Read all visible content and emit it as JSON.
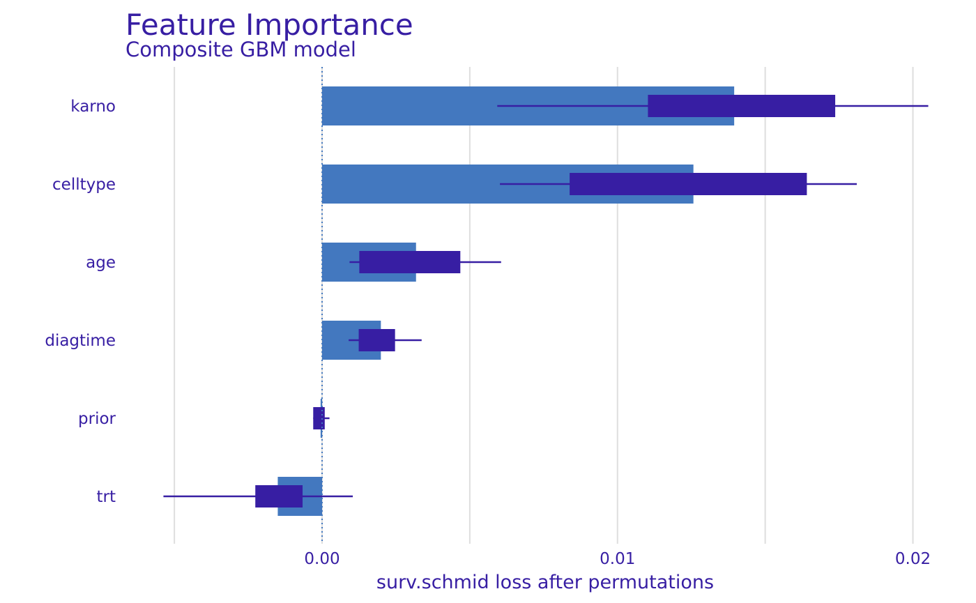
{
  "chart_data": {
    "type": "bar",
    "title": "Feature Importance",
    "subtitle": "Composite GBM model",
    "xlabel": "surv.schmid loss after permutations",
    "ylabel": "",
    "xlim": [
      -0.0055,
      0.0205
    ],
    "x_ticks": [
      {
        "value": 0.0,
        "label": "0.00"
      },
      {
        "value": 0.01,
        "label": "0.01"
      },
      {
        "value": 0.02,
        "label": "0.02"
      }
    ],
    "x_minor_gridlines": [
      -0.005,
      0.005,
      0.015
    ],
    "reference_line": 0.0,
    "grid": true,
    "legend": "none",
    "categories": [
      "karno",
      "celltype",
      "age",
      "diagtime",
      "prior",
      "trt"
    ],
    "series": [
      {
        "values": [
          0.01395,
          0.01257,
          0.00318,
          0.00199,
          -5e-05,
          -0.0015
        ]
      }
    ],
    "boxplots": [
      {
        "category": "karno",
        "min": 0.00593,
        "q1": 0.01103,
        "q3": 0.01737,
        "max": 0.02052
      },
      {
        "category": "celltype",
        "min": 0.00602,
        "q1": 0.00838,
        "q3": 0.01641,
        "max": 0.0181
      },
      {
        "category": "age",
        "min": 0.00093,
        "q1": 0.00126,
        "q3": 0.00468,
        "max": 0.00606
      },
      {
        "category": "diagtime",
        "min": 0.0009,
        "q1": 0.00124,
        "q3": 0.00247,
        "max": 0.00337
      },
      {
        "category": "prior",
        "min": -0.0003,
        "q1": -0.0003,
        "q3": 9e-05,
        "max": 0.00025
      },
      {
        "category": "trt",
        "min": -0.00537,
        "q1": -0.00226,
        "q3": -0.00066,
        "max": 0.00104
      }
    ],
    "colors": {
      "bar": "#4378bf",
      "box": "#371ea3",
      "text": "#371ea3",
      "grid": "#dedede",
      "reference": "#4378bf"
    }
  }
}
